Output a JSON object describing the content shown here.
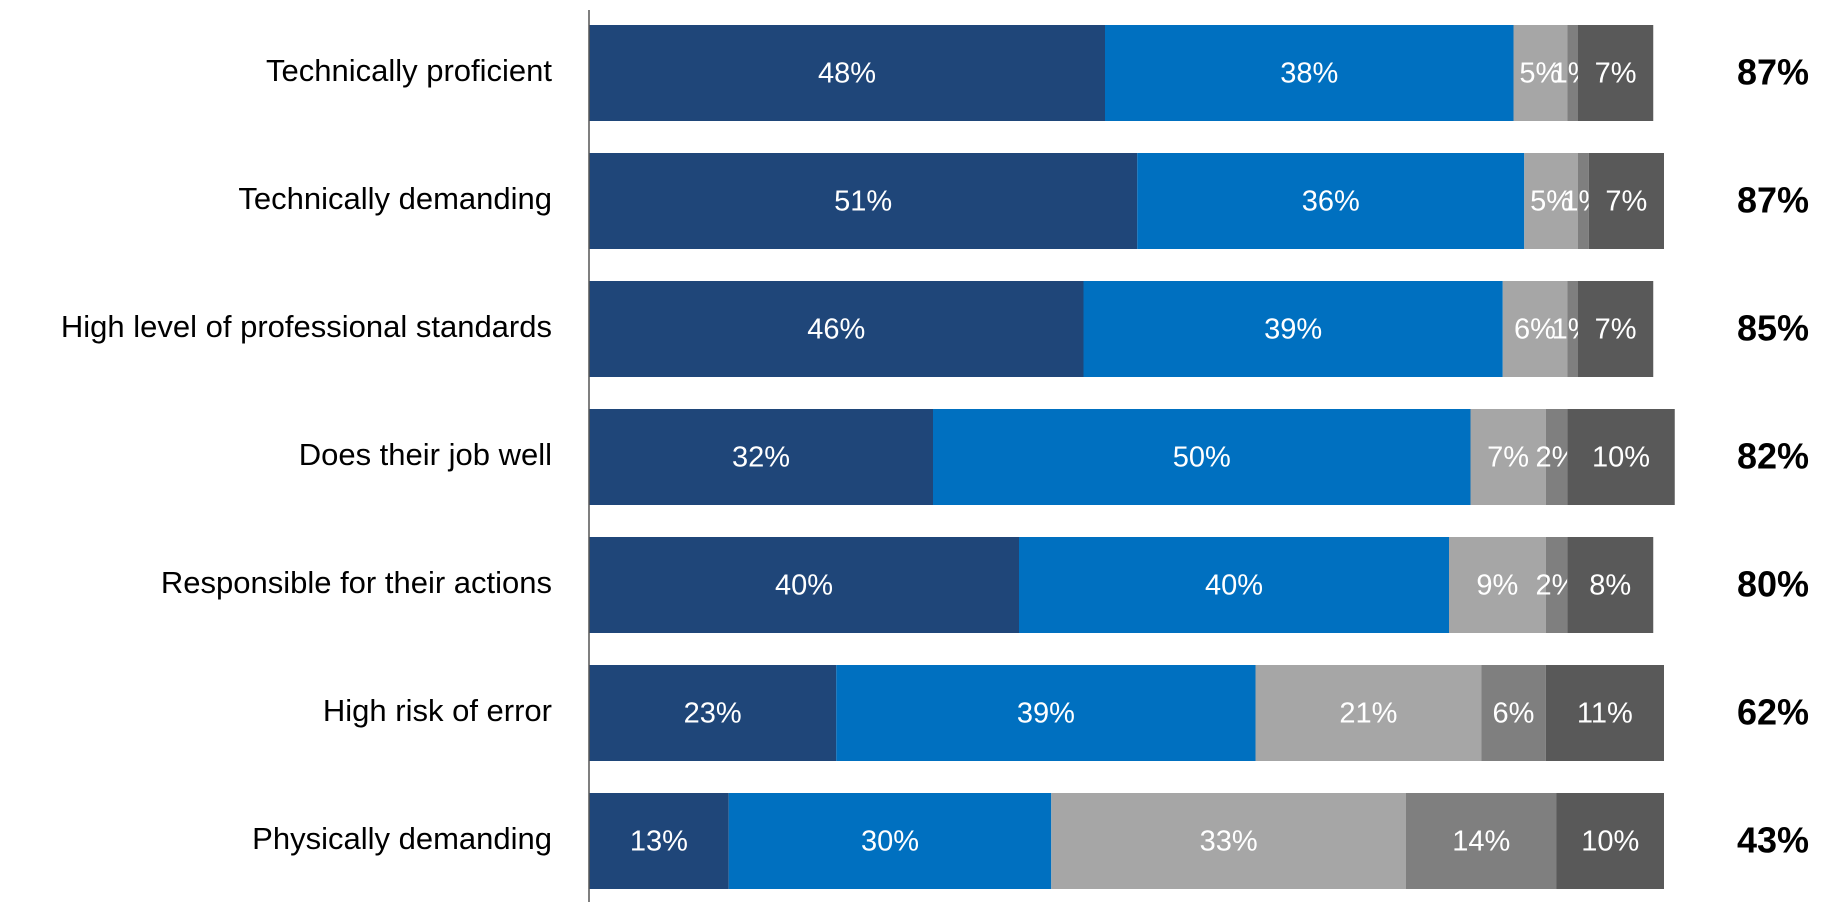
{
  "chart_data": {
    "type": "stacked-barh",
    "categories": [
      "Technically proficient",
      "Technically demanding",
      "High level of professional standards",
      "Does their job well",
      "Responsible for their actions",
      "High risk of error",
      "Physically demanding"
    ],
    "series": [
      {
        "color": "#1f4679",
        "values": [
          48,
          51,
          46,
          32,
          40,
          23,
          13
        ],
        "value_labels": [
          "48%",
          "51%",
          "46%",
          "32%",
          "40%",
          "23%",
          "13%"
        ]
      },
      {
        "color": "#0070c0",
        "values": [
          38,
          36,
          39,
          50,
          40,
          39,
          30
        ],
        "value_labels": [
          "38%",
          "36%",
          "39%",
          "50%",
          "40%",
          "39%",
          "30%"
        ]
      },
      {
        "color": "#a6a6a6",
        "values": [
          5,
          5,
          6,
          7,
          9,
          21,
          33
        ],
        "value_labels": [
          "5%",
          "5%",
          "6%",
          "7%",
          "9%",
          "21%",
          "33%"
        ]
      },
      {
        "color": "#7f7f7f",
        "values": [
          1,
          1,
          1,
          2,
          2,
          6,
          14
        ],
        "value_labels": [
          "1%",
          "1%",
          "1%",
          "2%",
          "2%",
          "6%",
          "14%"
        ]
      },
      {
        "color": "#595959",
        "values": [
          7,
          7,
          7,
          10,
          8,
          11,
          10
        ],
        "value_labels": [
          "7%",
          "7%",
          "7%",
          "10%",
          "8%",
          "11%",
          "10%"
        ]
      }
    ],
    "totals": {
      "values": [
        87,
        87,
        85,
        82,
        80,
        62,
        43
      ],
      "value_labels": [
        "87%",
        "87%",
        "85%",
        "82%",
        "80%",
        "62%",
        "43%"
      ]
    },
    "xlim": [
      0,
      100
    ]
  }
}
